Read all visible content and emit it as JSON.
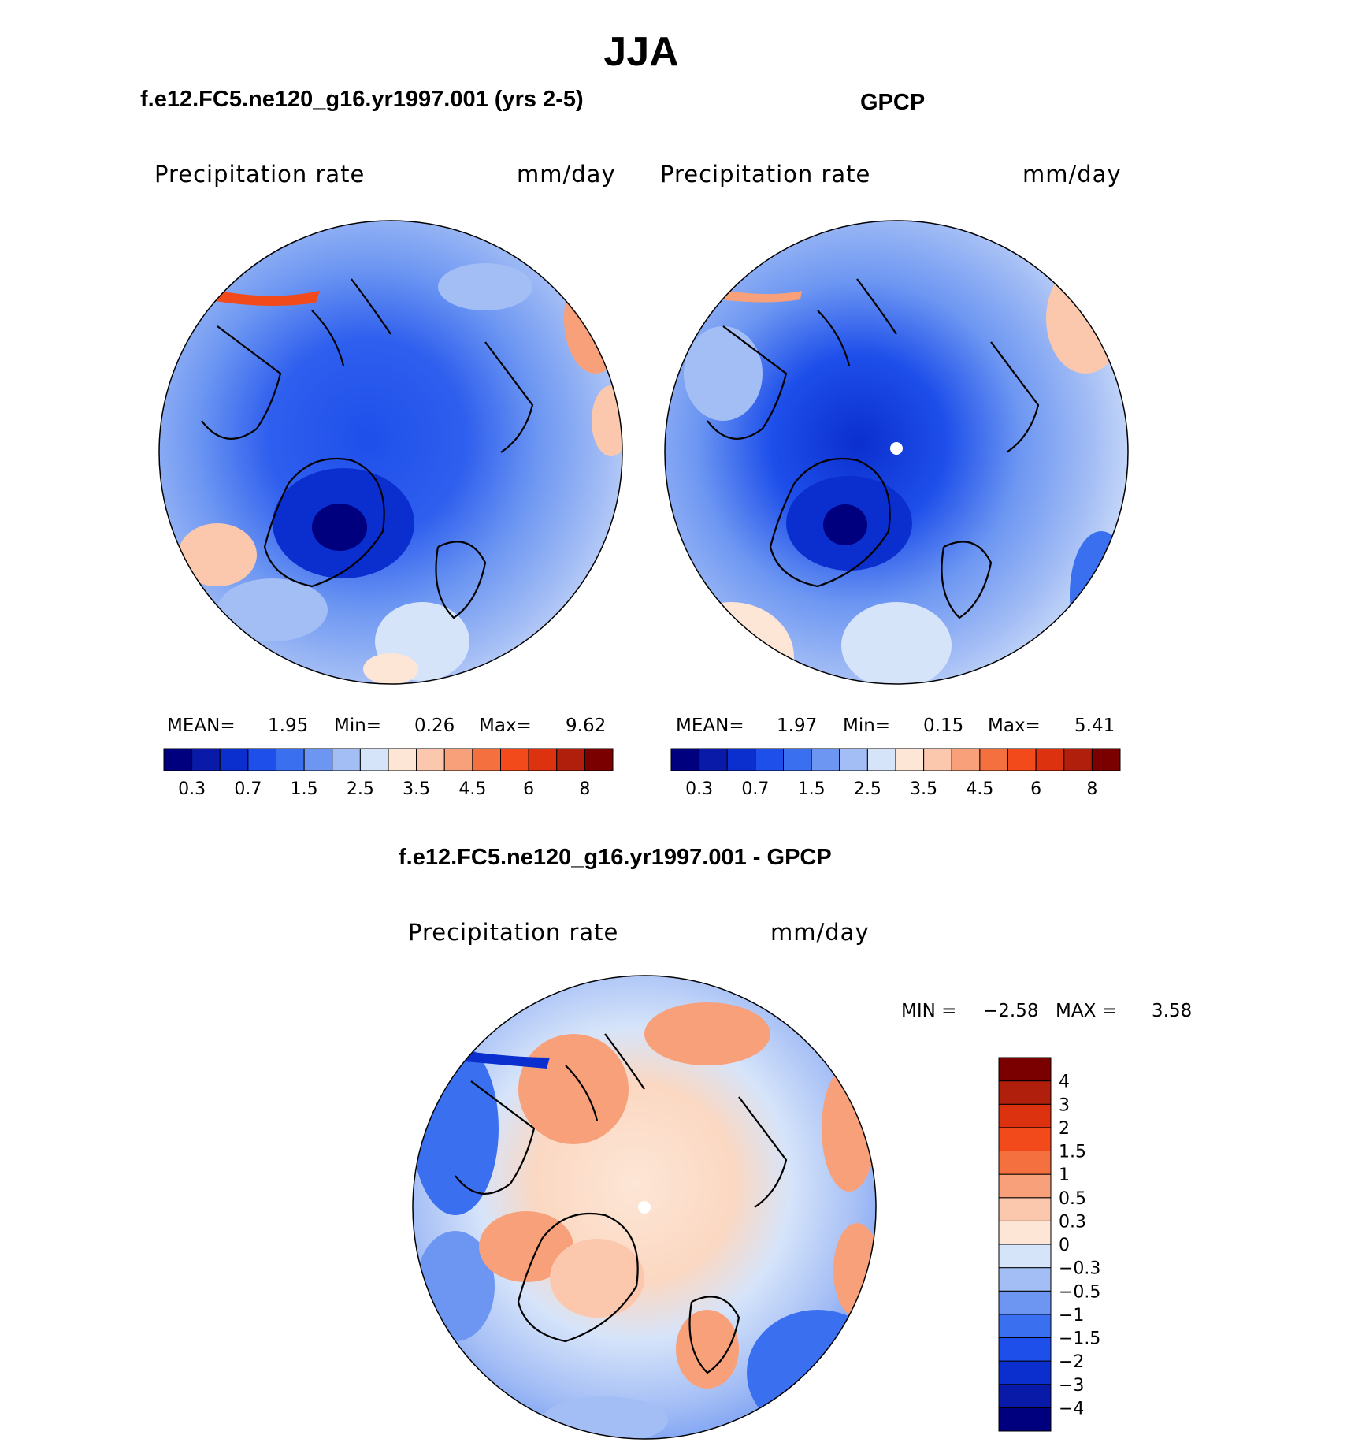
{
  "figure": {
    "title": "JJA"
  },
  "panels": [
    {
      "id": "model",
      "title": "f.e12.FC5.ne120_g16.yr1997.001 (yrs 2-5)",
      "variable": "Precipitation  rate",
      "units": "mm/day",
      "stats": {
        "mean_label": "MEAN=",
        "mean": "1.95",
        "min_label": "Min=",
        "min": "0.26",
        "max_label": "Max=",
        "max": "9.62"
      }
    },
    {
      "id": "obs",
      "title": "GPCP",
      "variable": "Precipitation  rate",
      "units": "mm/day",
      "stats": {
        "mean_label": "MEAN=",
        "mean": "1.97",
        "min_label": "Min=",
        "min": "0.15",
        "max_label": "Max=",
        "max": "5.41"
      }
    },
    {
      "id": "diff",
      "title": "f.e12.FC5.ne120_g16.yr1997.001 - GPCP",
      "variable": "Precipitation  rate",
      "units": "mm/day",
      "stats": {
        "min_label": "MIN =",
        "min": "−2.58",
        "max_label": "MAX =",
        "max": "3.58"
      }
    }
  ],
  "colorbars": {
    "precip": {
      "colors": [
        "#00007f",
        "#0a1aa8",
        "#0b2fcf",
        "#1e4fea",
        "#3a6ff0",
        "#6c96f2",
        "#a3bdf5",
        "#d6e4fa",
        "#fde6d6",
        "#fbc8ae",
        "#f8a07a",
        "#f4703f",
        "#f24a1b",
        "#dd320f",
        "#b01f0b",
        "#7a0000"
      ],
      "tick_labels": [
        "0.3",
        "0.7",
        "1.5",
        "2.5",
        "3.5",
        "4.5",
        "6",
        "8"
      ]
    },
    "diff": {
      "colors": [
        "#00007f",
        "#0a1aa8",
        "#0b2fcf",
        "#1e4fea",
        "#3a6ff0",
        "#6c96f2",
        "#a3bdf5",
        "#d6e4fa",
        "#fde6d6",
        "#fbc8ae",
        "#f8a07a",
        "#f4703f",
        "#f24a1b",
        "#dd320f",
        "#b01f0b",
        "#7a0000"
      ],
      "tick_labels": [
        "−4",
        "−3",
        "−2",
        "−1.5",
        "−1",
        "−0.5",
        "−0.3",
        "0",
        "0.3",
        "0.5",
        "1",
        "1.5",
        "2",
        "3",
        "4"
      ]
    }
  }
}
